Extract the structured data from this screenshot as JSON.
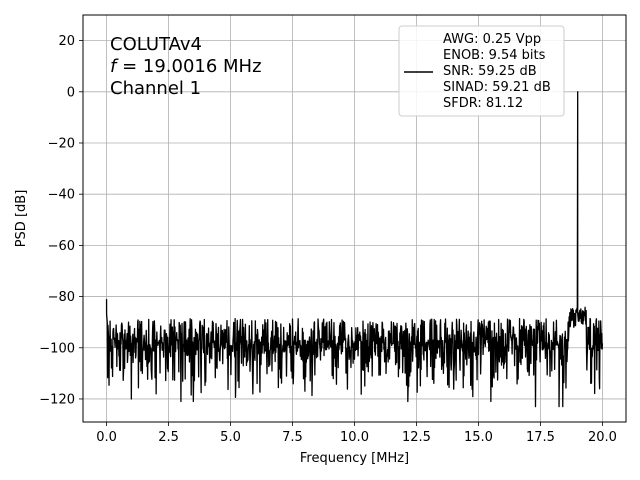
{
  "chart_data": {
    "type": "line",
    "xlabel": "Frequency [MHz]",
    "ylabel": "PSD [dB]",
    "xlim": [
      -0.95,
      20.95
    ],
    "ylim": [
      -129,
      30
    ],
    "xticks": [
      0.0,
      2.5,
      5.0,
      7.5,
      10.0,
      12.5,
      15.0,
      17.5,
      20.0
    ],
    "xtick_labels": [
      "0.0",
      "2.5",
      "5.0",
      "7.5",
      "10.0",
      "12.5",
      "15.0",
      "17.5",
      "20.0"
    ],
    "yticks": [
      20,
      0,
      -20,
      -40,
      -60,
      -80,
      -100,
      -120
    ],
    "ytick_labels": [
      "20",
      "0",
      "−20",
      "−40",
      "−60",
      "−80",
      "−100",
      "−120"
    ],
    "grid": true,
    "line_color": "#000000",
    "annotation": {
      "line1": "COLUTAv4",
      "line2_italic": "f",
      "line2_rest": " = 19.0016 MHz",
      "line3": "Channel 1"
    },
    "legend": {
      "placement": "top-right",
      "entries": [
        "AWG: 0.25 Vpp",
        "ENOB: 9.54 bits",
        "SNR: 59.25 dB",
        "SINAD: 59.21 dB",
        "SFDR: 81.12"
      ]
    },
    "series": [
      {
        "noise_floor_db": -97,
        "noise_band_db": [
          -112,
          -87
        ],
        "x_range": [
          0.0,
          20.0
        ],
        "peaks": [
          {
            "x": 0.0,
            "y": -81
          },
          {
            "x": 19.0016,
            "y": 0
          }
        ],
        "deep_dips": [
          {
            "x": 1.0,
            "y": -120
          },
          {
            "x": 2.0,
            "y": -118
          },
          {
            "x": 3.0,
            "y": -121
          },
          {
            "x": 3.5,
            "y": -121
          },
          {
            "x": 5.9,
            "y": -118
          },
          {
            "x": 8.0,
            "y": -117
          },
          {
            "x": 12.15,
            "y": -121
          },
          {
            "x": 15.5,
            "y": -121
          },
          {
            "x": 17.3,
            "y": -123
          },
          {
            "x": 18.25,
            "y": -123
          },
          {
            "x": 18.4,
            "y": -123
          }
        ]
      }
    ]
  }
}
